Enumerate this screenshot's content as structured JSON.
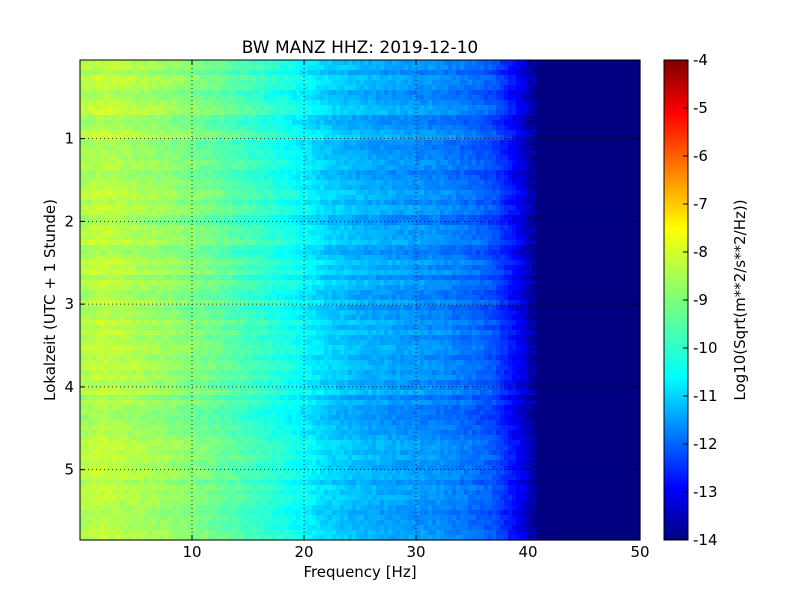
{
  "chart_data": {
    "type": "heatmap",
    "title": "BW MANZ HHZ: 2019-12-10",
    "xlabel": "Frequency [Hz]",
    "ylabel": "Lokalzeit (UTC + 1 Stunde)",
    "xlim": [
      0,
      50
    ],
    "ylim": [
      5.85,
      0.05
    ],
    "x_ticks": [
      "10",
      "20",
      "30",
      "40",
      "50"
    ],
    "y_ticks": [
      "1",
      "2",
      "3",
      "4",
      "5"
    ],
    "grid": true,
    "colormap": "jet",
    "colorbar": {
      "label": "Log10(Sqrt(m**2/s**2/Hz))",
      "range": [
        -14,
        -4
      ],
      "ticks": [
        "-4",
        "-5",
        "-6",
        "-7",
        "-8",
        "-9",
        "-10",
        "-11",
        "-12",
        "-13",
        "-14"
      ]
    },
    "frequency_profile": {
      "frequency_hz": [
        0,
        2,
        5,
        8,
        10,
        12,
        15,
        18,
        20,
        22,
        25,
        28,
        30,
        32,
        35,
        37,
        38,
        39,
        40,
        41,
        42,
        45,
        50
      ],
      "level_log10": [
        -8.6,
        -8.4,
        -8.6,
        -8.8,
        -9.0,
        -9.2,
        -9.6,
        -10.0,
        -10.3,
        -10.7,
        -11.0,
        -11.2,
        -11.3,
        -11.4,
        -11.7,
        -12.0,
        -12.4,
        -12.8,
        -13.3,
        -14.0,
        -14.0,
        -14.0,
        -14.0
      ]
    }
  }
}
